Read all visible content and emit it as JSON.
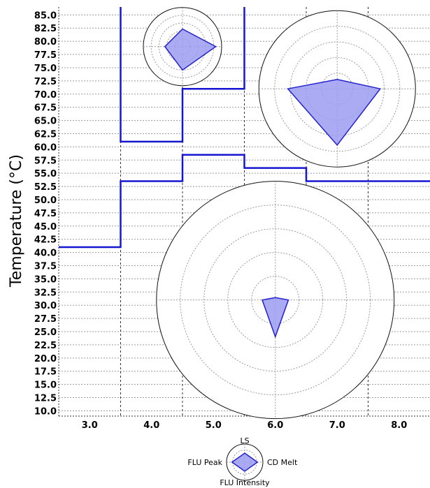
{
  "chart_data": {
    "type": "line",
    "title": "",
    "xlabel": "",
    "ylabel": "Temperature (°C)",
    "xlim": [
      2.5,
      8.5
    ],
    "ylim": [
      9.0,
      86.5
    ],
    "x_ticks": [
      "3.0",
      "4.0",
      "5.0",
      "6.0",
      "7.0",
      "8.0"
    ],
    "x_tick_values": [
      3,
      4,
      5,
      6,
      7,
      8
    ],
    "y_ticks": [
      "10.0",
      "12.5",
      "15.0",
      "17.5",
      "20.0",
      "22.5",
      "25.0",
      "27.5",
      "30.0",
      "32.5",
      "35.0",
      "37.5",
      "40.0",
      "42.5",
      "45.0",
      "47.5",
      "50.0",
      "52.5",
      "55.0",
      "57.5",
      "60.0",
      "62.5",
      "65.0",
      "67.5",
      "70.0",
      "72.5",
      "75.0",
      "77.5",
      "80.0",
      "82.5",
      "85.0"
    ],
    "y_tick_values": [
      10,
      12.5,
      15,
      17.5,
      20,
      22.5,
      25,
      27.5,
      30,
      32.5,
      35,
      37.5,
      40,
      42.5,
      45,
      47.5,
      50,
      52.5,
      55,
      57.5,
      60,
      62.5,
      65,
      67.5,
      70,
      72.5,
      75,
      77.5,
      80,
      82.5,
      85
    ],
    "grid": true,
    "vertical_separators_x": [
      3.5,
      4.5,
      5.5,
      6.5,
      7.5
    ],
    "series": [
      {
        "x": [
          2.5,
          3.5,
          3.5,
          4.5,
          4.5,
          5.5,
          5.5,
          6.5,
          6.5,
          8.5
        ],
        "y": [
          41.0,
          41.0,
          53.5,
          53.5,
          58.5,
          58.5,
          56.0,
          56.0,
          53.5,
          53.5
        ]
      },
      {
        "x": [
          3.5,
          3.5,
          4.5,
          4.5,
          5.5,
          5.5
        ],
        "y": [
          86.5,
          61.0,
          61.0,
          71.0,
          71.0,
          86.5
        ]
      }
    ],
    "radar_axes": [
      "LS",
      "CD Melt",
      "FLU Intensity",
      "FLU Peak"
    ],
    "radar_glyphs": [
      {
        "x": 4.5,
        "y": 79.0,
        "values": [
          0.45,
          0.85,
          0.6,
          0.45
        ]
      },
      {
        "x": 7.0,
        "y": 71.0,
        "values": [
          0.12,
          0.55,
          0.72,
          0.63
        ]
      },
      {
        "x": 6.0,
        "y": 31.0,
        "values": [
          0.02,
          0.11,
          0.31,
          0.11
        ]
      }
    ],
    "legend": {
      "placement": "bottom-center",
      "labels": {
        "top": "LS",
        "right": "CD Melt",
        "bottom": "FLU Intensity",
        "left": "FLU Peak"
      },
      "values": [
        0.5,
        0.7,
        0.5,
        0.7
      ]
    },
    "colors": {
      "line": "#1616d0",
      "glyph_fill": "#9c9cf2",
      "glyph_stroke": "#2222cc",
      "circle_stroke": "#111111",
      "grid": "#9a9a9a"
    }
  }
}
